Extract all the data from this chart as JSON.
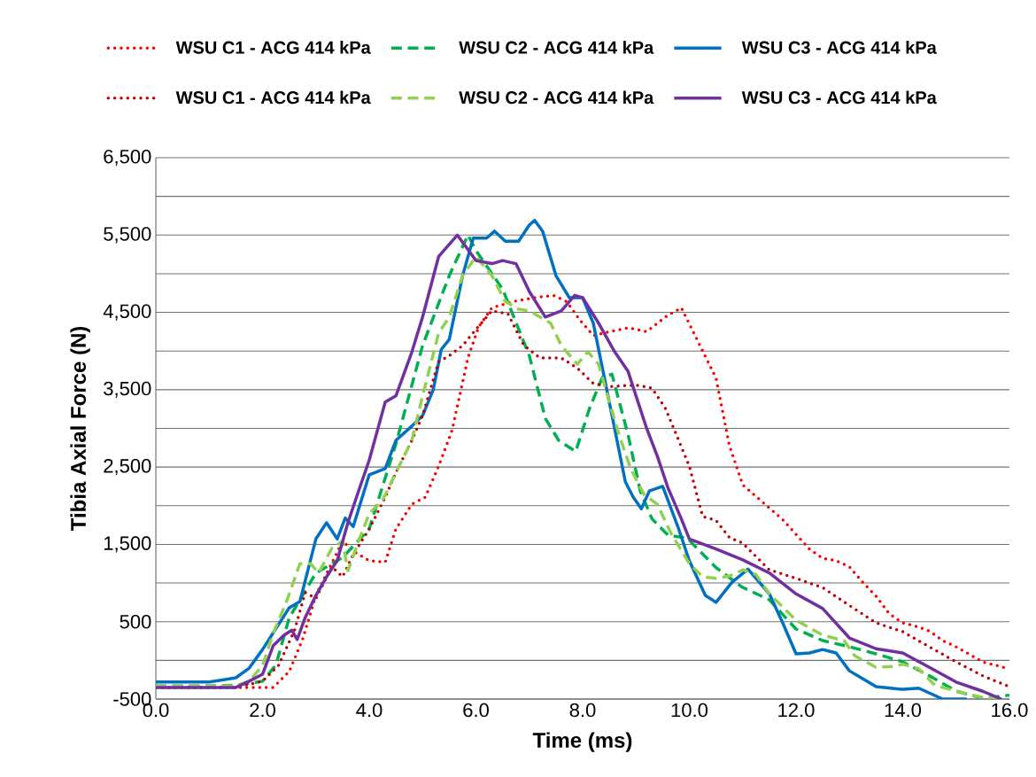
{
  "chart_data": {
    "type": "line",
    "xlabel": "Time (ms)",
    "ylabel": "Tibia Axial Force (N)",
    "xlim": [
      0,
      16
    ],
    "ylim": [
      -500,
      6500
    ],
    "xticks": [
      {
        "value": 0,
        "label": "0.0"
      },
      {
        "value": 2,
        "label": "2.0"
      },
      {
        "value": 4,
        "label": "4.0"
      },
      {
        "value": 6,
        "label": "6.0"
      },
      {
        "value": 8,
        "label": "8.0"
      },
      {
        "value": 10,
        "label": "10.0"
      },
      {
        "value": 12,
        "label": "12.0"
      },
      {
        "value": 14,
        "label": "14.0"
      },
      {
        "value": 16,
        "label": "16.0"
      }
    ],
    "yticks": [
      -500,
      {
        "value": 0,
        "label": null
      },
      500,
      {
        "value": 1000,
        "label": null
      },
      {
        "value": 1500,
        "label": "1,500"
      },
      {
        "value": 2000,
        "label": null
      },
      {
        "value": 2500,
        "label": "2,500"
      },
      {
        "value": 3000,
        "label": null
      },
      {
        "value": 3500,
        "label": "3,500"
      },
      {
        "value": 4000,
        "label": null
      },
      {
        "value": 4500,
        "label": "4,500"
      },
      {
        "value": 5000,
        "label": null
      },
      {
        "value": 5500,
        "label": "5,500"
      },
      {
        "value": 6000,
        "label": null
      },
      {
        "value": 6500,
        "label": "6,500"
      }
    ],
    "grid": "y",
    "legend": "top",
    "series": [
      {
        "name": "WSU C1 - ACG 414 kPa",
        "color": "#ff0000",
        "line_style": "dotted",
        "x": [
          0,
          1,
          2,
          2.2,
          2.5,
          2.75,
          3,
          3.5,
          3.75,
          4,
          4.3,
          4.5,
          4.8,
          5.05,
          5.3,
          5.55,
          5.72,
          5.85,
          6.05,
          6.3,
          6.7,
          7.1,
          7.45,
          7.7,
          7.95,
          8.2,
          8.5,
          8.85,
          9.2,
          9.55,
          9.85,
          10.2,
          10.5,
          10.75,
          11,
          11.25,
          11.5,
          11.75,
          12,
          12.25,
          12.5,
          12.75,
          13,
          13.25,
          13.5,
          13.75,
          14,
          14.25,
          14.5,
          14.75,
          15,
          15.5,
          16
        ],
        "values": [
          -350,
          -350,
          -350,
          -350,
          -145,
          270,
          840,
          1540,
          1390,
          1290,
          1270,
          1700,
          2020,
          2110,
          2510,
          2970,
          3500,
          3910,
          4310,
          4560,
          4640,
          4690,
          4720,
          4640,
          4400,
          4200,
          4250,
          4300,
          4250,
          4440,
          4560,
          4070,
          3650,
          2780,
          2270,
          2120,
          1970,
          1820,
          1630,
          1440,
          1320,
          1290,
          1210,
          1010,
          830,
          600,
          485,
          440,
          380,
          255,
          175,
          -20,
          -110
        ]
      },
      {
        "name": "WSU C2 - ACG 414 kPa",
        "color": "#00b050",
        "line_style": "dashed",
        "x": [
          0,
          1,
          1.5,
          2,
          2.25,
          2.5,
          3,
          3.5,
          4,
          4.5,
          5,
          5.5,
          5.85,
          6,
          6.5,
          7,
          7.3,
          7.55,
          7.87,
          8.13,
          8.37,
          8.55,
          8.85,
          9.08,
          9.3,
          9.6,
          9.96,
          10.5,
          11,
          11.5,
          12,
          12.5,
          13,
          13.5,
          14,
          14.5,
          15,
          15.5,
          16
        ],
        "values": [
          -330,
          -330,
          -320,
          -270,
          -60,
          550,
          1130,
          1330,
          1700,
          2800,
          4070,
          4975,
          5500,
          5300,
          4800,
          3940,
          3130,
          2845,
          2700,
          3260,
          3660,
          3700,
          2920,
          2190,
          1830,
          1620,
          1580,
          1200,
          943,
          783,
          405,
          256,
          176,
          84,
          -19,
          -200,
          -397,
          -490,
          -450
        ]
      },
      {
        "name": "WSU C3 - ACG 414 kPa",
        "color": "#0070c0",
        "line_style": "solid",
        "x": [
          0,
          1,
          1.5,
          1.75,
          2,
          2.5,
          2.7,
          3,
          3.2,
          3.4,
          3.55,
          3.7,
          4,
          4.3,
          4.5,
          4.8,
          5,
          5.2,
          5.35,
          5.5,
          5.75,
          5.95,
          6.2,
          6.35,
          6.55,
          6.8,
          7,
          7.1,
          7.25,
          7.5,
          7.75,
          8,
          8.2,
          8.5,
          8.8,
          8.95,
          9.1,
          9.25,
          9.5,
          9.8,
          10,
          10.3,
          10.5,
          10.8,
          11.1,
          11.5,
          11.75,
          12,
          12.25,
          12.5,
          12.75,
          13,
          13.5,
          14,
          14.3,
          14.75,
          15.2
        ],
        "values": [
          -280,
          -280,
          -225,
          -100,
          140,
          680,
          760,
          1570,
          1780,
          1570,
          1840,
          1730,
          2400,
          2480,
          2845,
          3030,
          3165,
          3500,
          4020,
          4150,
          4975,
          5460,
          5460,
          5550,
          5420,
          5420,
          5630,
          5690,
          5550,
          4975,
          4690,
          4690,
          4360,
          3340,
          2310,
          2110,
          1960,
          2190,
          2250,
          1700,
          1287,
          840,
          750,
          1010,
          1180,
          860,
          485,
          84,
          96,
          140,
          96,
          -135,
          -340,
          -375,
          -360,
          -500,
          -500
        ]
      },
      {
        "name": "WSU C1 - ACG 414 kPa",
        "color": "#c00000",
        "line_style": "dotted",
        "x": [
          0,
          1.5,
          2,
          2.3,
          2.6,
          2.8,
          3,
          3.3,
          3.5,
          3.7,
          4,
          4.3,
          4.5,
          4.8,
          5,
          5.3,
          5.5,
          5.75,
          6,
          6.3,
          6.6,
          6.9,
          7.2,
          7.6,
          7.9,
          8.2,
          8.5,
          9,
          9.3,
          9.55,
          9.8,
          10,
          10.25,
          10.5,
          10.75,
          11,
          11.5,
          12,
          12.5,
          13,
          13.5,
          14,
          14.5,
          15,
          15.5,
          16
        ],
        "values": [
          -350,
          -350,
          -270,
          -65,
          390,
          875,
          800,
          1210,
          1080,
          1370,
          1700,
          2110,
          2430,
          2845,
          3165,
          3860,
          3940,
          4070,
          4280,
          4520,
          4480,
          4070,
          3910,
          3910,
          3780,
          3580,
          3540,
          3560,
          3520,
          3260,
          2845,
          2510,
          1860,
          1810,
          1590,
          1515,
          1170,
          1060,
          940,
          710,
          485,
          370,
          175,
          -20,
          -200,
          -340
        ]
      },
      {
        "name": "WSU C2 - ACG 414 kPa",
        "color": "#92d050",
        "line_style": "dashed",
        "x": [
          0,
          1.5,
          1.75,
          2,
          2.2,
          2.45,
          2.7,
          2.9,
          3.05,
          3.3,
          3.5,
          3.6,
          3.8,
          4,
          4.25,
          4.5,
          4.8,
          5,
          5.3,
          5.5,
          5.75,
          6,
          6.3,
          6.55,
          6.8,
          7,
          7.4,
          7.6,
          7.9,
          8.1,
          8.3,
          8.5,
          8.7,
          8.9,
          9.15,
          9.4,
          9.65,
          10,
          10.25,
          10.5,
          10.75,
          11,
          11.25,
          11.5,
          12,
          12.5,
          12.9,
          13.1,
          13.5,
          13.8,
          14,
          14.3,
          14.6,
          15,
          15.5,
          15.9
        ],
        "values": [
          -330,
          -330,
          -270,
          -65,
          350,
          760,
          1250,
          1250,
          1130,
          1450,
          1540,
          1160,
          1540,
          1900,
          2070,
          2430,
          2845,
          3420,
          4230,
          4440,
          4975,
          5220,
          4975,
          4640,
          4540,
          4520,
          4360,
          4070,
          3830,
          3990,
          3830,
          3340,
          2880,
          2480,
          2145,
          2020,
          1650,
          1250,
          1080,
          1060,
          1090,
          1170,
          1110,
          860,
          520,
          325,
          255,
          60,
          -90,
          -80,
          -50,
          -110,
          -320,
          -400,
          -480,
          -500
        ]
      },
      {
        "name": "WSU C3 - ACG 414 kPa",
        "color": "#7030a0",
        "line_style": "solid",
        "x": [
          0,
          1.5,
          1.75,
          2,
          2.2,
          2.4,
          2.55,
          2.65,
          2.8,
          3,
          3.2,
          3.4,
          3.6,
          3.8,
          4,
          4.3,
          4.5,
          4.8,
          5,
          5.3,
          5.65,
          6,
          6.3,
          6.5,
          6.75,
          7,
          7.3,
          7.6,
          7.85,
          8,
          8.3,
          8.6,
          8.85,
          9,
          9.2,
          9.4,
          9.6,
          9.85,
          10,
          10.5,
          11,
          11.5,
          12,
          12.5,
          13,
          13.5,
          14,
          14.5,
          15,
          15.5,
          15.85
        ],
        "values": [
          -350,
          -350,
          -270,
          -180,
          190,
          325,
          390,
          270,
          555,
          840,
          1080,
          1290,
          1780,
          2190,
          2590,
          3340,
          3420,
          3990,
          4440,
          5220,
          5500,
          5170,
          5130,
          5170,
          5130,
          4770,
          4440,
          4520,
          4720,
          4690,
          4360,
          3990,
          3740,
          3420,
          3000,
          2640,
          2230,
          1830,
          1570,
          1440,
          1300,
          1130,
          860,
          670,
          290,
          150,
          96,
          -90,
          -280,
          -400,
          -500
        ]
      }
    ]
  }
}
